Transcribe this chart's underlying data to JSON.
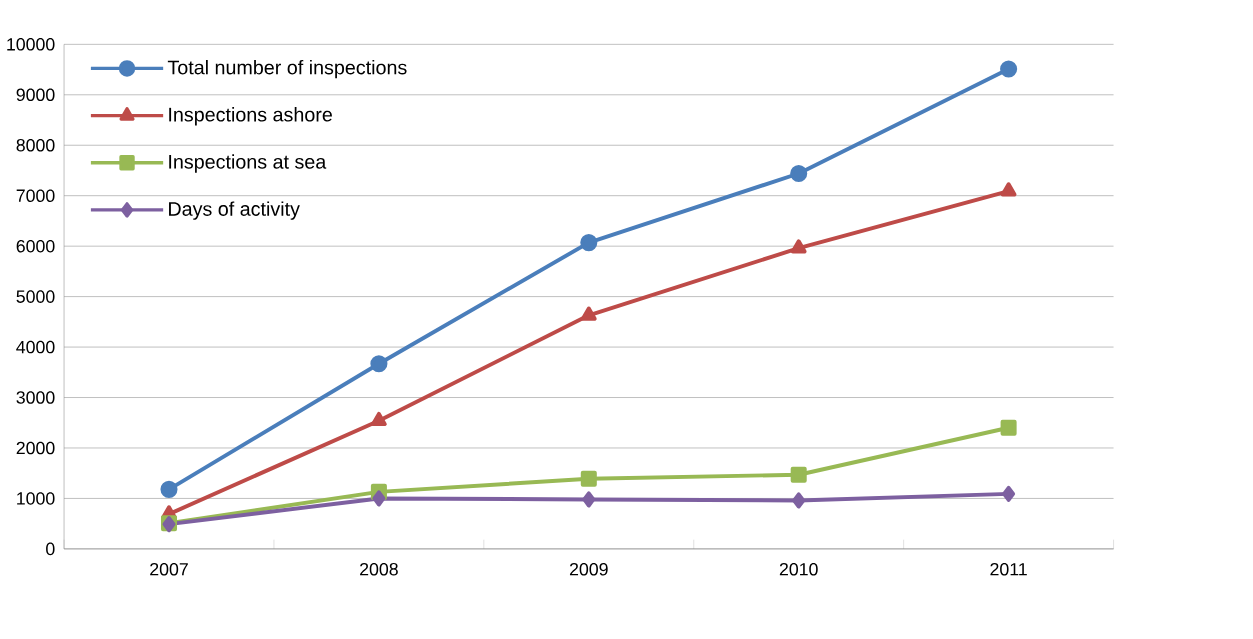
{
  "chart_data": {
    "type": "line",
    "categories": [
      "2007",
      "2008",
      "2009",
      "2010",
      "2011"
    ],
    "series": [
      {
        "name": "Total number of inspections",
        "color": "#4a7ebb",
        "marker": "circle",
        "values": [
          1180,
          3670,
          6070,
          7440,
          9510
        ]
      },
      {
        "name": "Inspections ashore",
        "color": "#be4b48",
        "marker": "triangle",
        "values": [
          690,
          2540,
          4630,
          5960,
          7090
        ]
      },
      {
        "name": "Inspections at sea",
        "color": "#98b954",
        "marker": "square",
        "values": [
          510,
          1130,
          1390,
          1470,
          2400
        ]
      },
      {
        "name": "Days of activity",
        "color": "#7d60a0",
        "marker": "diamond",
        "values": [
          490,
          1000,
          980,
          960,
          1090
        ]
      }
    ],
    "ylim": [
      0,
      10000
    ],
    "yticks": [
      0,
      1000,
      2000,
      3000,
      4000,
      5000,
      6000,
      7000,
      8000,
      9000,
      10000
    ],
    "grid": "y",
    "legend": "top left",
    "line_style": "solid"
  }
}
